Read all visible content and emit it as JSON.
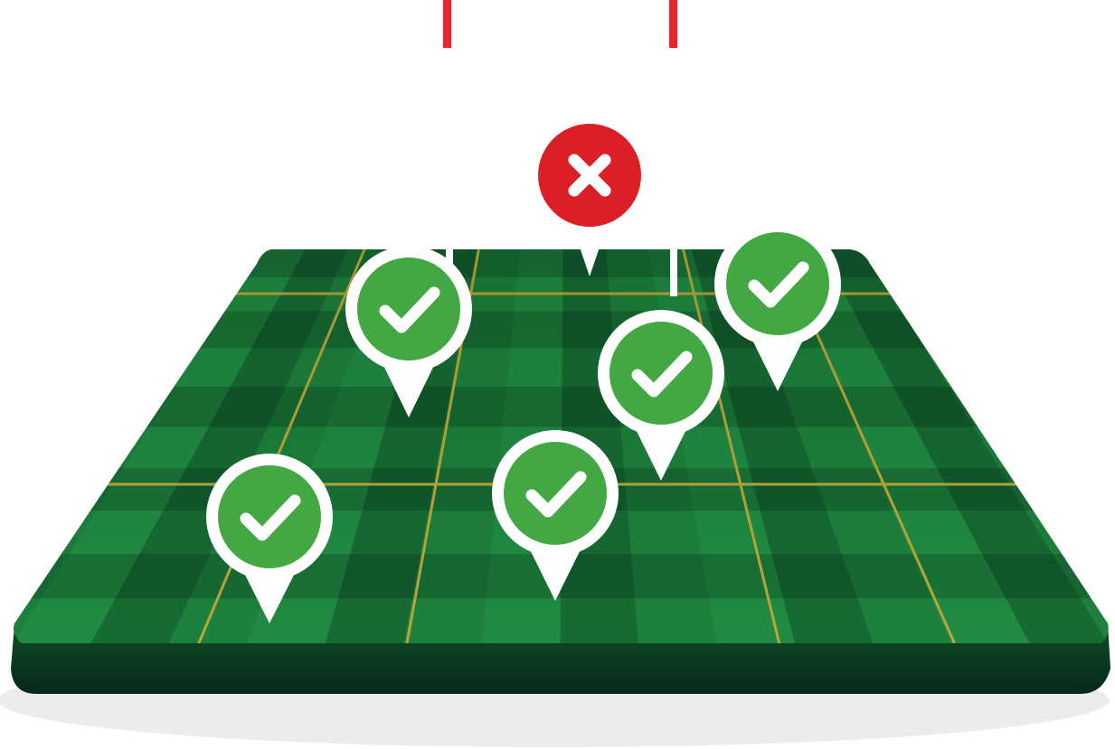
{
  "scene": {
    "background_color": "#ffffff",
    "board": {
      "color_dark": "#0d4a24",
      "color_mid": "#1a7a3a",
      "color_light": "#26a04c",
      "edge_color": "#08331a",
      "grid_line_color": "#b8a83a",
      "shadow_color": "#e6e6e6"
    },
    "top_markers": {
      "color": "#e3262d",
      "count": 2
    },
    "pins": [
      {
        "name": "pin-check-1",
        "status": "approved",
        "icon": "checkmark-icon",
        "fill": "#43a844"
      },
      {
        "name": "pin-check-2",
        "status": "approved",
        "icon": "checkmark-icon",
        "fill": "#43a844"
      },
      {
        "name": "pin-check-3",
        "status": "approved",
        "icon": "checkmark-icon",
        "fill": "#43a844"
      },
      {
        "name": "pin-check-4",
        "status": "approved",
        "icon": "checkmark-icon",
        "fill": "#43a844"
      },
      {
        "name": "pin-check-5",
        "status": "approved",
        "icon": "checkmark-icon",
        "fill": "#43a844"
      },
      {
        "name": "pin-check-6",
        "status": "approved",
        "icon": "checkmark-icon",
        "fill": "#43a844"
      },
      {
        "name": "pin-reject",
        "status": "rejected",
        "icon": "x-mark-icon",
        "fill": "#da1f26"
      }
    ]
  }
}
